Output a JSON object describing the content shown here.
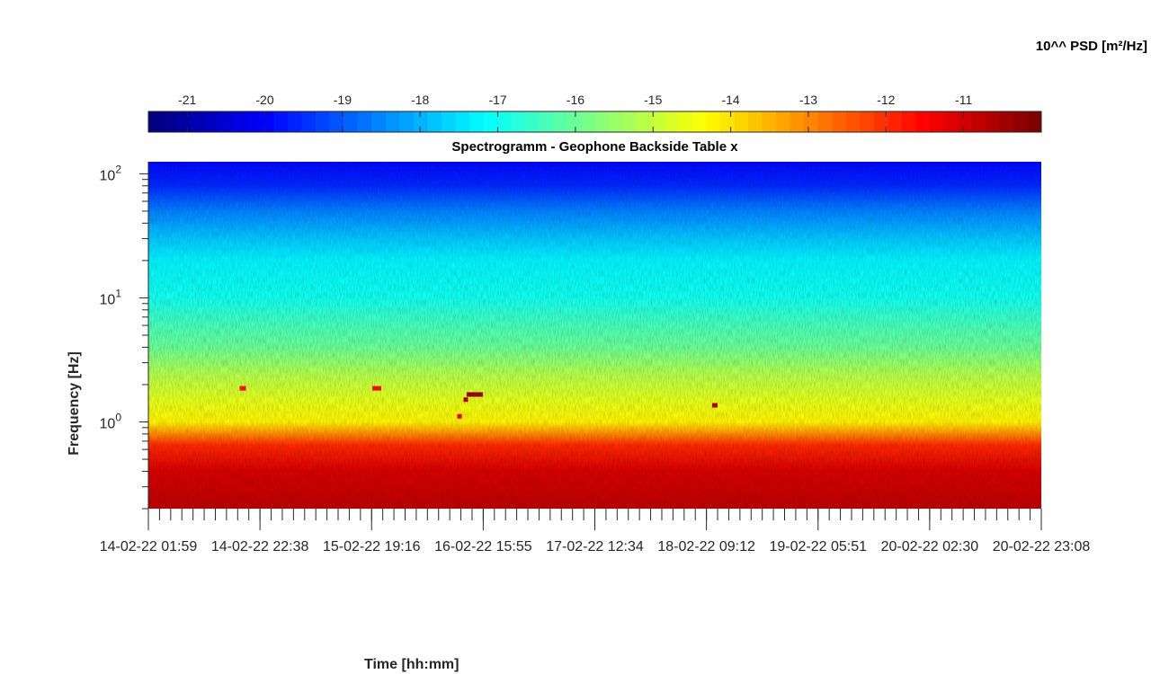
{
  "chart_data": {
    "type": "heatmap",
    "title": "Spectrogramm - Geophone Backside Table x",
    "xlabel": "Time [hh:mm]",
    "ylabel": "Frequency [Hz]",
    "colorbar_label": "10^^ PSD [m²/Hz]",
    "colormap": "jet",
    "colorbar_range": [
      -21.5,
      -10
    ],
    "colorbar_ticks": [
      "-21",
      "-20",
      "-19",
      "-18",
      "-17",
      "-16",
      "-15",
      "-14",
      "-13",
      "-12",
      "-11"
    ],
    "y_scale": "log",
    "ylim": [
      0.2,
      125
    ],
    "y_ticks": [
      {
        "exp": 0,
        "text": "10",
        "sup": "0"
      },
      {
        "exp": 1,
        "text": "10",
        "sup": "1"
      },
      {
        "exp": 2,
        "text": "10",
        "sup": "2"
      }
    ],
    "x_tick_labels": [
      "14-02-22 01:59",
      "14-02-22 22:38",
      "15-02-22 19:16",
      "16-02-22 15:55",
      "17-02-22 12:34",
      "18-02-22 09:12",
      "19-02-22 05:51",
      "20-02-22 02:30",
      "20-02-22 23:08"
    ],
    "minor_ticks_per_interval": 10,
    "psd_profile": [
      {
        "f": 0.2,
        "psd": -10.7
      },
      {
        "f": 0.4,
        "psd": -11.0
      },
      {
        "f": 0.65,
        "psd": -11.9
      },
      {
        "f": 0.8,
        "psd": -13.0
      },
      {
        "f": 1.0,
        "psd": -14.2
      },
      {
        "f": 1.5,
        "psd": -14.6
      },
      {
        "f": 2.5,
        "psd": -15.2
      },
      {
        "f": 4,
        "psd": -16.0
      },
      {
        "f": 6,
        "psd": -16.4
      },
      {
        "f": 10,
        "psd": -17.0
      },
      {
        "f": 20,
        "psd": -17.3
      },
      {
        "f": 30,
        "psd": -17.8
      },
      {
        "f": 50,
        "psd": -18.6
      },
      {
        "f": 80,
        "psd": -19.6
      },
      {
        "f": 125,
        "psd": -20.0
      }
    ],
    "events": [
      {
        "time": "14-02-22 ~15:00",
        "f": 1.85,
        "psd": -11.5
      },
      {
        "time": "15-02-22 ~19:00",
        "f": 1.85,
        "psd": -11.5
      },
      {
        "time": "16-02-22 ~14:00",
        "f": 1.65,
        "psd": -10.3
      },
      {
        "time": "16-02-22 ~12:00",
        "f": 1.5,
        "psd": -10.5
      },
      {
        "time": "16-02-22 ~11:00",
        "f": 1.1,
        "psd": -11.2
      },
      {
        "time": "18-02-22 ~10:00",
        "f": 1.35,
        "psd": -10.6
      }
    ]
  }
}
